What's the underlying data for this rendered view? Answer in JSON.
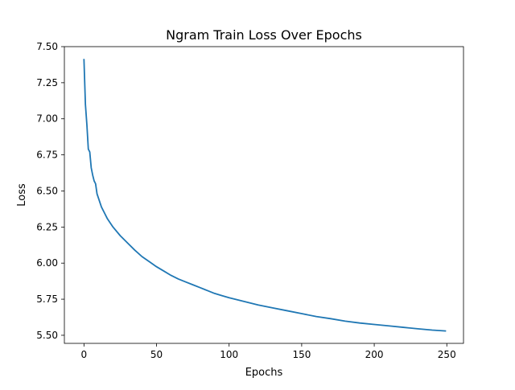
{
  "chart_data": {
    "type": "line",
    "title": "Ngram Train Loss Over Epochs",
    "xlabel": "Epochs",
    "ylabel": "Loss",
    "xlim": [
      -13.5,
      261.5
    ],
    "ylim": [
      5.444,
      7.5
    ],
    "xticks": [
      0,
      50,
      100,
      150,
      200,
      250
    ],
    "xtick_labels": [
      "0",
      "50",
      "100",
      "150",
      "200",
      "250"
    ],
    "yticks": [
      5.5,
      5.75,
      6.0,
      6.25,
      6.5,
      6.75,
      7.0,
      7.25,
      7.5
    ],
    "ytick_labels": [
      "5.50",
      "5.75",
      "6.00",
      "6.25",
      "6.50",
      "6.75",
      "7.00",
      "7.25",
      "7.50"
    ],
    "grid": false,
    "series": [
      {
        "color": "#1f77b4",
        "x": [
          0,
          1,
          2,
          3,
          4,
          5,
          6,
          7,
          8,
          9,
          10,
          12,
          14,
          16,
          18,
          20,
          25,
          30,
          35,
          40,
          45,
          50,
          55,
          60,
          65,
          70,
          75,
          80,
          85,
          90,
          95,
          100,
          110,
          120,
          130,
          140,
          150,
          160,
          170,
          180,
          190,
          200,
          210,
          220,
          230,
          240,
          249
        ],
        "y": [
          7.41,
          7.1,
          6.96,
          6.79,
          6.77,
          6.66,
          6.61,
          6.57,
          6.55,
          6.48,
          6.45,
          6.39,
          6.35,
          6.31,
          6.28,
          6.25,
          6.19,
          6.14,
          6.09,
          6.045,
          6.01,
          5.975,
          5.945,
          5.915,
          5.89,
          5.87,
          5.85,
          5.83,
          5.81,
          5.79,
          5.775,
          5.76,
          5.735,
          5.71,
          5.69,
          5.67,
          5.65,
          5.63,
          5.615,
          5.598,
          5.585,
          5.575,
          5.565,
          5.555,
          5.545,
          5.536,
          5.53
        ]
      }
    ]
  }
}
